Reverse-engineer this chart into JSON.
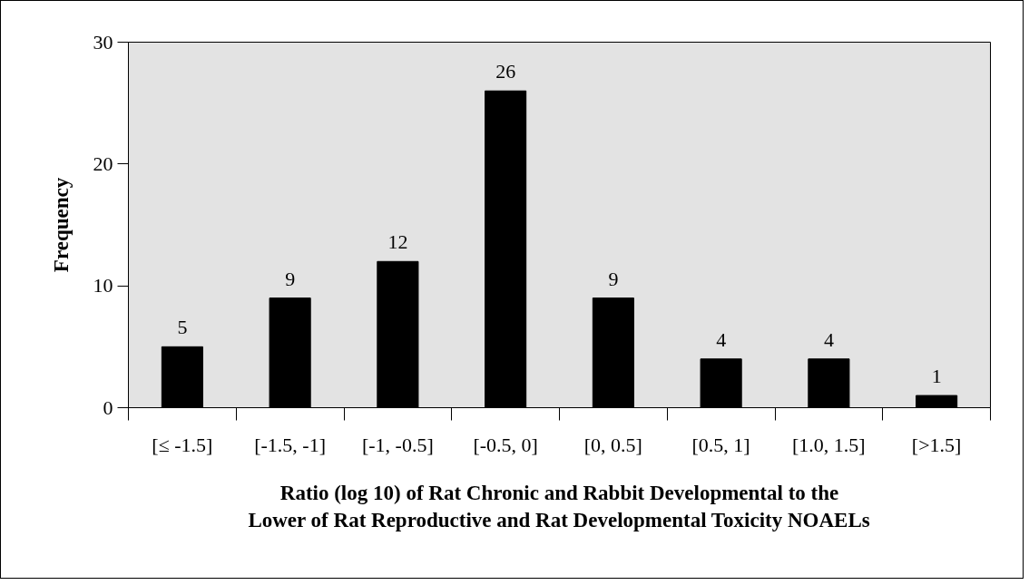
{
  "chart_data": {
    "type": "bar",
    "xlabel": "Ratio (log 10) of Rat Chronic and Rabbit Developmental to the Lower of Rat Reproductive and Rat Developmental Toxicity NOAELs",
    "ylabel": "Frequency",
    "categories": [
      "[≤ -1.5]",
      "[-1.5, -1]",
      "[-1, -0.5]",
      "[-0.5, 0]",
      "[0, 0.5]",
      "[0.5, 1]",
      "[1.0, 1.5]",
      "[>1.5]"
    ],
    "values": [
      5,
      9,
      12,
      26,
      9,
      4,
      4,
      1
    ],
    "color": "#000000",
    "ylim": [
      0,
      30
    ],
    "yticks": [
      0,
      10,
      20,
      30
    ],
    "data_labels": true,
    "grid": false
  }
}
